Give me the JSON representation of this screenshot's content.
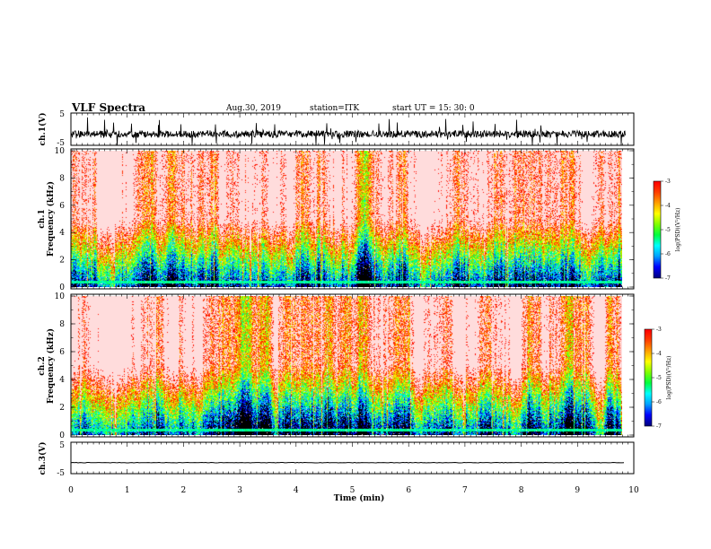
{
  "header": {
    "title": "VLF Spectra",
    "date": "Aug.30, 2019",
    "station": "station=ITK",
    "start": "start  UT  =  15: 30: 0"
  },
  "chart_data": [
    {
      "type": "line",
      "name": "ch1-waveform",
      "ylabel": "ch.1(V)",
      "ylim": [
        -5,
        5
      ],
      "yticks": [
        "5",
        "-5"
      ],
      "baseline": -1.5,
      "amplitude": "noisy"
    },
    {
      "type": "heatmap",
      "name": "ch1-spectrogram",
      "ylabel": "ch.1\nFrequency  (kHz)",
      "ylim": [
        0,
        10
      ],
      "yticks": [
        "0",
        "2",
        "4",
        "6",
        "8",
        "10"
      ],
      "colorbar": {
        "label": "log(PSD)(V²/Hz)",
        "ticks": [
          "-3",
          "-4",
          "-5",
          "-6",
          "-7"
        ],
        "range": [
          -7,
          -3
        ]
      }
    },
    {
      "type": "heatmap",
      "name": "ch2-spectrogram",
      "ylabel": "ch.2\nFrequency  (kHz)",
      "ylim": [
        0,
        10
      ],
      "yticks": [
        "0",
        "2",
        "4",
        "6",
        "8",
        "10"
      ],
      "colorbar": {
        "label": "log(PSD)(V²/Hz)",
        "ticks": [
          "-3",
          "-4",
          "-5",
          "-6",
          "-7"
        ],
        "range": [
          -7,
          -3
        ]
      }
    },
    {
      "type": "line",
      "name": "ch3-waveform",
      "ylabel": "ch.3(V)",
      "ylim": [
        -5,
        5
      ],
      "yticks": [
        "5",
        "-5"
      ],
      "baseline": -1.5,
      "amplitude": "flat"
    }
  ],
  "xaxis": {
    "label": "Time  (min)",
    "range": [
      0,
      10
    ],
    "ticks": [
      "0",
      "1",
      "2",
      "3",
      "4",
      "5",
      "6",
      "7",
      "8",
      "9",
      "10"
    ],
    "data_end": 9.85
  },
  "colors": {
    "colormap": [
      "#000080",
      "#0000ff",
      "#00a0ff",
      "#00ffff",
      "#00ff40",
      "#80ff00",
      "#ffff00",
      "#ffa000",
      "#ff4000",
      "#ff0000"
    ]
  }
}
